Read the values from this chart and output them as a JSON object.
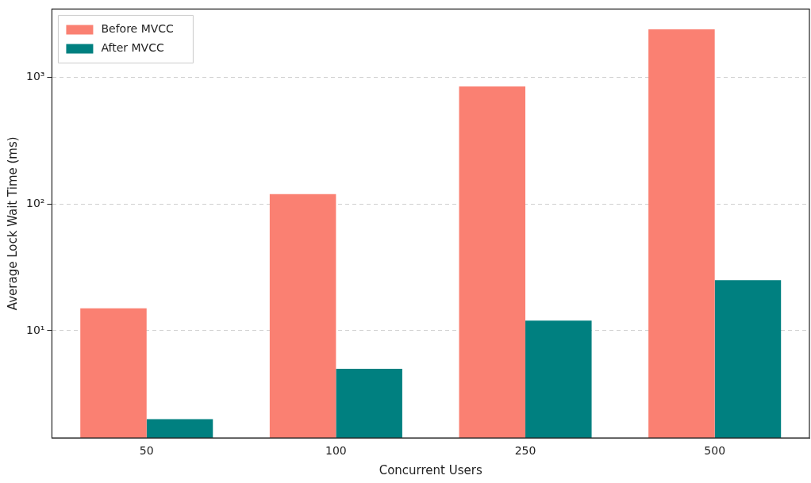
{
  "chart_data": {
    "type": "bar",
    "xlabel": "Concurrent Users",
    "ylabel": "Average Lock Wait Time (ms)",
    "categories": [
      "50",
      "100",
      "250",
      "500"
    ],
    "series": [
      {
        "name": "Before MVCC",
        "color": "#fa8072",
        "values": [
          15,
          120,
          850,
          2400
        ]
      },
      {
        "name": "After MVCC",
        "color": "#008080",
        "values": [
          2,
          5,
          12,
          25
        ]
      }
    ],
    "log": "y",
    "ylim": [
      1.42,
      3470
    ],
    "yticks": [
      {
        "value": 10,
        "label": "10¹"
      },
      {
        "value": 100,
        "label": "10²"
      },
      {
        "value": 1000,
        "label": "10³"
      }
    ],
    "grid": "y",
    "legend": "top left"
  }
}
